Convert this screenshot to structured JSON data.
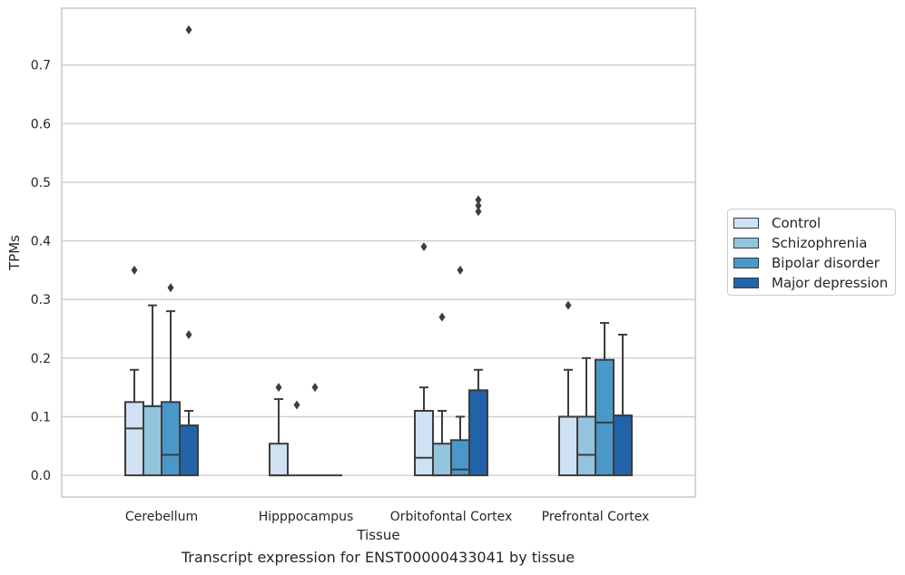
{
  "caption": "Transcript expression for ENST00000433041 by tissue",
  "legend": {
    "items": [
      {
        "label": "Control",
        "color": "#cfe1f2"
      },
      {
        "label": "Schizophrenia",
        "color": "#93c4de"
      },
      {
        "label": "Bipolar disorder",
        "color": "#4a98c9"
      },
      {
        "label": "Major depression",
        "color": "#2164aa"
      }
    ]
  },
  "chart_data": {
    "type": "box",
    "xlabel": "Tissue",
    "ylabel": "TPMs",
    "ylim": [
      -0.037,
      0.797
    ],
    "yticks": [
      0.0,
      0.1,
      0.2,
      0.3,
      0.4,
      0.5,
      0.6,
      0.7
    ],
    "ytick_labels": [
      "0.0",
      "0.1",
      "0.2",
      "0.3",
      "0.4",
      "0.5",
      "0.6",
      "0.7"
    ],
    "grid": true,
    "legend_position": "right",
    "categories": [
      "Cerebellum",
      "Hipppocampus",
      "Orbitofontal Cortex",
      "Prefrontal Cortex"
    ],
    "series": [
      {
        "name": "Control",
        "color": "#cfe1f2",
        "boxes": [
          {
            "whislo": 0.0,
            "q1": 0.0,
            "med": 0.08,
            "q3": 0.125,
            "whishi": 0.18,
            "fliers": [
              0.35
            ]
          },
          {
            "whislo": 0.0,
            "q1": 0.0,
            "med": 0.0,
            "q3": 0.054,
            "whishi": 0.13,
            "fliers": [
              0.15
            ]
          },
          {
            "whislo": 0.0,
            "q1": 0.0,
            "med": 0.03,
            "q3": 0.11,
            "whishi": 0.15,
            "fliers": [
              0.39
            ]
          },
          {
            "whislo": 0.0,
            "q1": 0.0,
            "med": 0.1,
            "q3": 0.1,
            "whishi": 0.18,
            "fliers": [
              0.29
            ]
          }
        ]
      },
      {
        "name": "Schizophrenia",
        "color": "#93c4de",
        "boxes": [
          {
            "whislo": 0.0,
            "q1": 0.0,
            "med": 0.118,
            "q3": 0.118,
            "whishi": 0.29,
            "fliers": []
          },
          {
            "whislo": 0.0,
            "q1": 0.0,
            "med": 0.0,
            "q3": 0.0,
            "whishi": 0.0,
            "fliers": [
              0.12
            ]
          },
          {
            "whislo": 0.0,
            "q1": 0.0,
            "med": 0.0,
            "q3": 0.054,
            "whishi": 0.11,
            "fliers": [
              0.27
            ]
          },
          {
            "whislo": 0.0,
            "q1": 0.0,
            "med": 0.035,
            "q3": 0.1,
            "whishi": 0.2,
            "fliers": []
          }
        ]
      },
      {
        "name": "Bipolar disorder",
        "color": "#4a98c9",
        "boxes": [
          {
            "whislo": 0.0,
            "q1": 0.0,
            "med": 0.035,
            "q3": 0.125,
            "whishi": 0.28,
            "fliers": [
              0.32
            ]
          },
          {
            "whislo": 0.0,
            "q1": 0.0,
            "med": 0.0,
            "q3": 0.0,
            "whishi": 0.0,
            "fliers": [
              0.15
            ]
          },
          {
            "whislo": 0.0,
            "q1": 0.0,
            "med": 0.01,
            "q3": 0.06,
            "whishi": 0.1,
            "fliers": [
              0.35
            ]
          },
          {
            "whislo": 0.0,
            "q1": 0.0,
            "med": 0.09,
            "q3": 0.197,
            "whishi": 0.26,
            "fliers": []
          }
        ]
      },
      {
        "name": "Major depression",
        "color": "#2164aa",
        "boxes": [
          {
            "whislo": 0.0,
            "q1": 0.0,
            "med": 0.085,
            "q3": 0.085,
            "whishi": 0.11,
            "fliers": [
              0.24,
              0.76
            ]
          },
          {
            "whislo": 0.0,
            "q1": 0.0,
            "med": 0.0,
            "q3": 0.0,
            "whishi": 0.0,
            "fliers": []
          },
          {
            "whislo": 0.0,
            "q1": 0.0,
            "med": 0.145,
            "q3": 0.145,
            "whishi": 0.18,
            "fliers": [
              0.45,
              0.46,
              0.47
            ]
          },
          {
            "whislo": 0.0,
            "q1": 0.0,
            "med": 0.102,
            "q3": 0.102,
            "whishi": 0.24,
            "fliers": []
          }
        ]
      }
    ]
  }
}
